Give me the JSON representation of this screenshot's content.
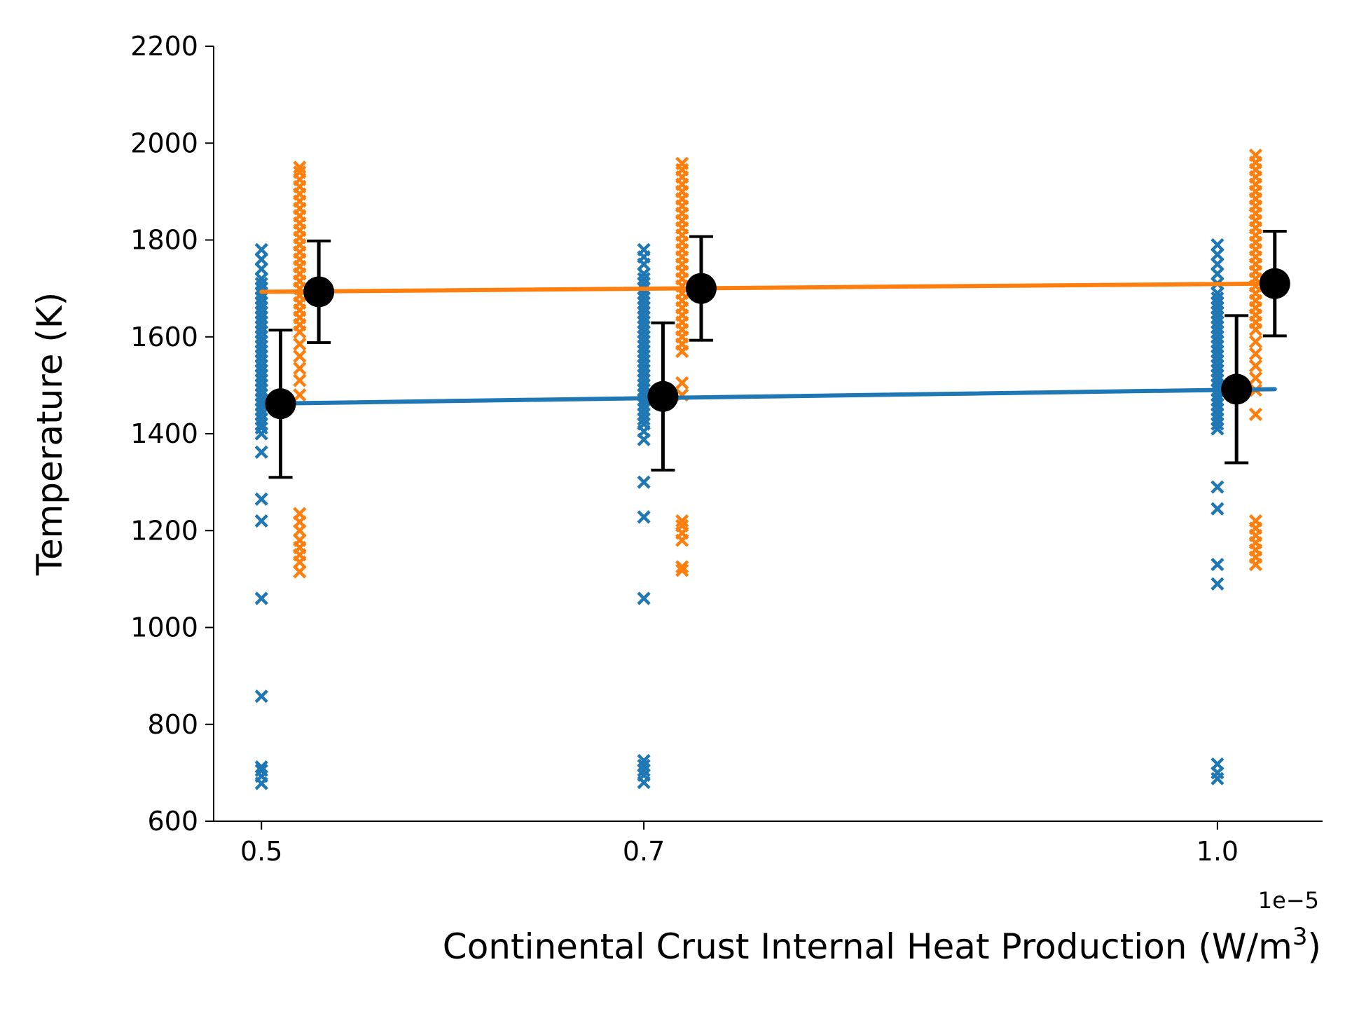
{
  "chart_data": {
    "type": "scatter",
    "title": "",
    "xlabel": "Continental Crust Internal Heat Production (W/m",
    "xlabel_superscript": "3",
    "xlabel_suffix": ")",
    "x_offset_label": "1e−5",
    "ylabel": "Temperature (K)",
    "xlim": [
      0.475,
      1.055
    ],
    "ylim": [
      600,
      2200
    ],
    "x_ticks": [
      0.5,
      0.7,
      1.0
    ],
    "x_tick_labels": [
      "0.5",
      "0.7",
      "1.0"
    ],
    "y_ticks": [
      600,
      800,
      1000,
      1200,
      1400,
      1600,
      1800,
      2000,
      2200
    ],
    "y_tick_labels": [
      "600",
      "800",
      "1000",
      "1200",
      "1400",
      "1600",
      "1800",
      "2000",
      "2200"
    ],
    "grid": false,
    "legend": "none",
    "colors": {
      "series_blue": "#1f77b4",
      "series_orange": "#ff7f0e",
      "summary": "#000000"
    },
    "series": [
      {
        "color": "#1f77b4",
        "fit_line": {
          "x": [
            0.5,
            1.0
          ],
          "y": [
            1462,
            1492
          ]
        },
        "groups": [
          {
            "x": 0.5,
            "y": [
              678,
              693,
              705,
              712,
              858,
              1060,
              1220,
              1265,
              1362,
              1400,
              1412,
              1420,
              1430,
              1440,
              1450,
              1460,
              1470,
              1480,
              1490,
              1500,
              1510,
              1520,
              1530,
              1540,
              1550,
              1560,
              1570,
              1580,
              1590,
              1600,
              1610,
              1620,
              1630,
              1640,
              1650,
              1660,
              1670,
              1680,
              1690,
              1700,
              1710,
              1720,
              1740,
              1760,
              1780
            ]
          },
          {
            "x": 0.7,
            "y": [
              680,
              695,
              705,
              715,
              725,
              1060,
              1228,
              1300,
              1388,
              1405,
              1420,
              1430,
              1440,
              1450,
              1460,
              1470,
              1480,
              1490,
              1500,
              1510,
              1520,
              1530,
              1540,
              1550,
              1560,
              1570,
              1580,
              1590,
              1600,
              1610,
              1620,
              1630,
              1640,
              1650,
              1660,
              1670,
              1680,
              1690,
              1700,
              1710,
              1720,
              1730,
              1750,
              1765,
              1780
            ]
          },
          {
            "x": 1.0,
            "y": [
              688,
              700,
              718,
              1090,
              1130,
              1245,
              1290,
              1410,
              1420,
              1430,
              1440,
              1450,
              1460,
              1470,
              1480,
              1490,
              1500,
              1510,
              1520,
              1530,
              1540,
              1550,
              1560,
              1570,
              1580,
              1590,
              1600,
              1610,
              1620,
              1630,
              1640,
              1650,
              1660,
              1670,
              1680,
              1690,
              1710,
              1730,
              1750,
              1770,
              1790
            ]
          }
        ],
        "summary": [
          {
            "x": 0.5,
            "mean": 1462,
            "err": 152
          },
          {
            "x": 0.7,
            "mean": 1477,
            "err": 152
          },
          {
            "x": 1.0,
            "mean": 1492,
            "err": 152
          }
        ]
      },
      {
        "color": "#ff7f0e",
        "fit_line": {
          "x": [
            0.5,
            1.0
          ],
          "y": [
            1693,
            1710
          ]
        },
        "groups": [
          {
            "x": 0.5,
            "y": [
              1115,
              1135,
              1150,
              1165,
              1180,
              1200,
              1218,
              1235,
              1480,
              1510,
              1535,
              1560,
              1585,
              1610,
              1625,
              1640,
              1655,
              1670,
              1685,
              1700,
              1715,
              1730,
              1745,
              1760,
              1775,
              1790,
              1805,
              1820,
              1835,
              1850,
              1865,
              1880,
              1895,
              1910,
              1925,
              1940,
              1950
            ]
          },
          {
            "x": 0.7,
            "y": [
              1118,
              1125,
              1180,
              1195,
              1210,
              1220,
              1480,
              1505,
              1570,
              1585,
              1600,
              1615,
              1630,
              1645,
              1660,
              1675,
              1690,
              1705,
              1720,
              1735,
              1750,
              1765,
              1780,
              1795,
              1810,
              1825,
              1840,
              1855,
              1870,
              1885,
              1900,
              1915,
              1930,
              1945,
              1958
            ]
          },
          {
            "x": 1.0,
            "y": [
              1130,
              1145,
              1160,
              1175,
              1190,
              1205,
              1220,
              1440,
              1490,
              1515,
              1540,
              1565,
              1590,
              1615,
              1630,
              1645,
              1660,
              1675,
              1690,
              1705,
              1720,
              1735,
              1750,
              1765,
              1780,
              1795,
              1810,
              1825,
              1840,
              1855,
              1870,
              1885,
              1900,
              1915,
              1930,
              1945,
              1960,
              1975
            ]
          }
        ],
        "summary": [
          {
            "x": 0.5,
            "mean": 1693,
            "err": 105
          },
          {
            "x": 0.7,
            "mean": 1700,
            "err": 107
          },
          {
            "x": 1.0,
            "mean": 1710,
            "err": 108
          }
        ]
      }
    ]
  }
}
